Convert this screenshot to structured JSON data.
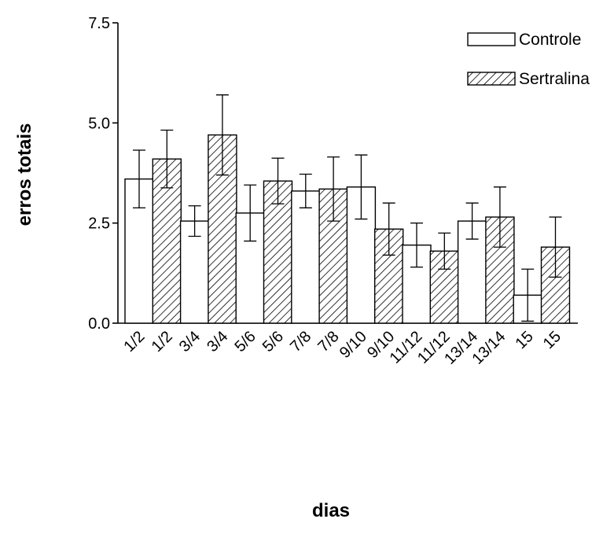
{
  "chart_data": {
    "type": "bar",
    "xlabel": "dias",
    "ylabel": "erros totais",
    "ylim": [
      0,
      7.5
    ],
    "yticks": [
      "0.0",
      "2.5",
      "5.0",
      "7.5"
    ],
    "ytick_values": [
      0,
      2.5,
      5.0,
      7.5
    ],
    "legend_position": "top-right",
    "grid": false,
    "series": [
      {
        "name": "Controle",
        "pattern": "none"
      },
      {
        "name": "Sertralina",
        "pattern": "diagonal-hatch"
      }
    ],
    "bars": [
      {
        "category": "1/2",
        "series": 0,
        "value": 3.6,
        "error": 0.72
      },
      {
        "category": "1/2",
        "series": 1,
        "value": 4.1,
        "error": 0.72
      },
      {
        "category": "3/4",
        "series": 0,
        "value": 2.55,
        "error": 0.38
      },
      {
        "category": "3/4",
        "series": 1,
        "value": 4.7,
        "error": 1.0
      },
      {
        "category": "5/6",
        "series": 0,
        "value": 2.75,
        "error": 0.7
      },
      {
        "category": "5/6",
        "series": 1,
        "value": 3.55,
        "error": 0.57
      },
      {
        "category": "7/8",
        "series": 0,
        "value": 3.3,
        "error": 0.42
      },
      {
        "category": "7/8",
        "series": 1,
        "value": 3.35,
        "error": 0.8
      },
      {
        "category": "9/10",
        "series": 0,
        "value": 3.4,
        "error": 0.8
      },
      {
        "category": "9/10",
        "series": 1,
        "value": 2.35,
        "error": 0.65
      },
      {
        "category": "11/12",
        "series": 0,
        "value": 1.95,
        "error": 0.55
      },
      {
        "category": "11/12",
        "series": 1,
        "value": 1.8,
        "error": 0.45
      },
      {
        "category": "13/14",
        "series": 0,
        "value": 2.55,
        "error": 0.45
      },
      {
        "category": "13/14",
        "series": 1,
        "value": 2.65,
        "error": 0.75
      },
      {
        "category": "15",
        "series": 0,
        "value": 0.7,
        "error": 0.65
      },
      {
        "category": "15",
        "series": 1,
        "value": 1.9,
        "error": 0.75
      }
    ]
  }
}
